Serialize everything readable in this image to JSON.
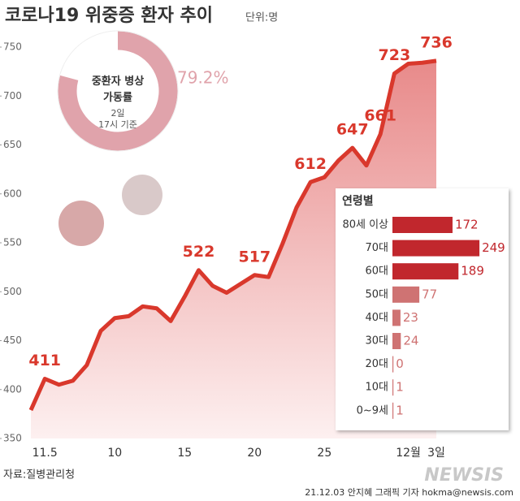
{
  "title": "코로나19 위중증 환자 추이",
  "unit": "단위:명",
  "source": "자료:질병관리청",
  "credit": "21.12.03 안지혜 그래픽 기자 hokma@newsis.com",
  "logo": "NEWSIS",
  "chart_data": [
    {
      "type": "line",
      "categories": [
        null,
        "11.5",
        null,
        null,
        null,
        null,
        "10",
        null,
        null,
        null,
        null,
        "15",
        null,
        null,
        null,
        null,
        "20",
        null,
        null,
        null,
        null,
        "25",
        null,
        null,
        null,
        null,
        null,
        "12월",
        null,
        "3일"
      ],
      "series": [
        {
          "name": "위중증 환자",
          "color": "#d9382c",
          "values": [
            379,
            411,
            405,
            409,
            425,
            460,
            473,
            475,
            485,
            483,
            470,
            495,
            522,
            506,
            499,
            508,
            517,
            515,
            549,
            586,
            612,
            617,
            634,
            647,
            629,
            661,
            723,
            733,
            734,
            736
          ]
        }
      ],
      "ylim": [
        350,
        750
      ],
      "yticks": [
        350,
        400,
        450,
        500,
        550,
        600,
        650,
        700,
        750
      ]
    },
    {
      "type": "pie",
      "title": "중환자 병상 가동률",
      "subtitle": "2일 17시 기준",
      "values": [
        79.2
      ],
      "value_labels": [
        "79.2%"
      ],
      "color": "#e0a3ab"
    },
    {
      "type": "bar",
      "title": "연령별",
      "categories": [
        "80세 이상",
        "70대",
        "60대",
        "50대",
        "40대",
        "30대",
        "20대",
        "10대",
        "0~9세"
      ],
      "values": [
        172,
        249,
        189,
        77,
        23,
        24,
        0,
        1,
        1
      ],
      "colors": [
        "#c1272d",
        "#c1272d",
        "#c1272d",
        "#cf7373",
        "#cf7373",
        "#cf7373",
        "#cf7373",
        "#cf7373",
        "#cf7373"
      ]
    }
  ]
}
